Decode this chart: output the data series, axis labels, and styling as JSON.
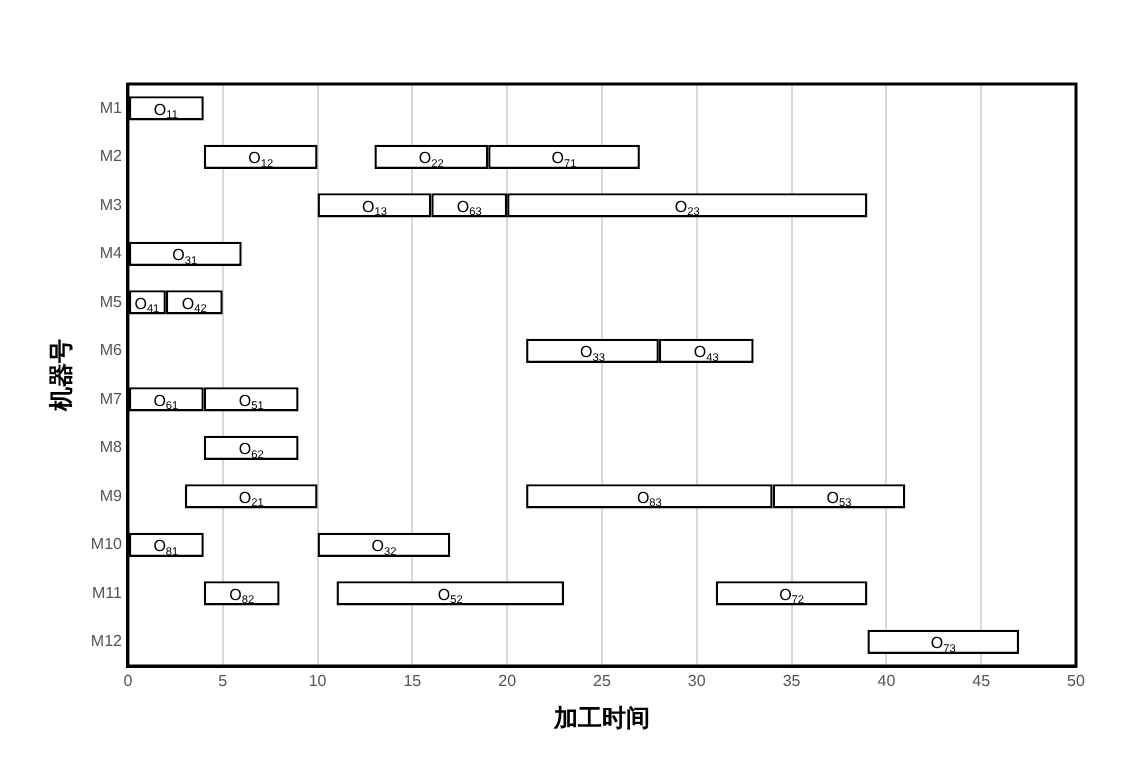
{
  "chart_data": {
    "type": "bar",
    "orientation": "horizontal",
    "xlabel": "加工时间",
    "ylabel": "机器号",
    "categories": [
      "M1",
      "M2",
      "M3",
      "M4",
      "M5",
      "M6",
      "M7",
      "M8",
      "M9",
      "M10",
      "M11",
      "M12"
    ],
    "series": [
      {
        "color": "#ffffff",
        "base": [
          0,
          4,
          10,
          0,
          0,
          21,
          0,
          4,
          3,
          0,
          4,
          39
        ],
        "values": [
          4,
          6,
          6,
          6,
          2,
          7,
          4,
          5,
          7,
          4,
          4,
          8
        ]
      },
      {
        "color": "#ffffff",
        "base": [
          null,
          13,
          16,
          null,
          2,
          28,
          4,
          null,
          21,
          10,
          11,
          null
        ],
        "values": [
          null,
          6,
          4,
          null,
          3,
          5,
          5,
          null,
          13,
          7,
          12,
          null
        ]
      },
      {
        "color": "#ffffff",
        "base": [
          null,
          19,
          20,
          null,
          null,
          null,
          null,
          null,
          34,
          null,
          31,
          null
        ],
        "values": [
          null,
          8,
          19,
          null,
          null,
          null,
          null,
          null,
          7,
          null,
          8,
          null
        ]
      }
    ],
    "annotations": [
      {
        "text": "O$_{11}$",
        "x": 2,
        "y": "M1"
      },
      {
        "text": "O$_{12}$",
        "x": 7,
        "y": "M2"
      },
      {
        "text": "O$_{22}$",
        "x": 16,
        "y": "M2"
      },
      {
        "text": "O$_{71}$",
        "x": 23,
        "y": "M2"
      },
      {
        "text": "O$_{13}$",
        "x": 13,
        "y": "M3"
      },
      {
        "text": "O$_{63}$",
        "x": 18,
        "y": "M3"
      },
      {
        "text": "O$_{23}$",
        "x": 29.5,
        "y": "M3"
      },
      {
        "text": "O$_{31}$",
        "x": 3,
        "y": "M4"
      },
      {
        "text": "O$_{41}$",
        "x": 1,
        "y": "M5"
      },
      {
        "text": "O$_{42}$",
        "x": 3.5,
        "y": "M5"
      },
      {
        "text": "O$_{33}$",
        "x": 24.5,
        "y": "M6"
      },
      {
        "text": "O$_{43}$",
        "x": 30.5,
        "y": "M6"
      },
      {
        "text": "O$_{61}$",
        "x": 2,
        "y": "M7"
      },
      {
        "text": "O$_{51}$",
        "x": 6.5,
        "y": "M7"
      },
      {
        "text": "O$_{62}$",
        "x": 6.5,
        "y": "M8"
      },
      {
        "text": "O$_{21}$",
        "x": 6.5,
        "y": "M9"
      },
      {
        "text": "O$_{83}$",
        "x": 27.5,
        "y": "M9"
      },
      {
        "text": "O$_{53}$",
        "x": 37.5,
        "y": "M9"
      },
      {
        "text": "O$_{81}$",
        "x": 2,
        "y": "M10"
      },
      {
        "text": "O$_{32}$",
        "x": 13.5,
        "y": "M10"
      },
      {
        "text": "O$_{82}$",
        "x": 6,
        "y": "M11"
      },
      {
        "text": "O$_{52}$",
        "x": 17,
        "y": "M11"
      },
      {
        "text": "O$_{72}$",
        "x": 35,
        "y": "M11"
      },
      {
        "text": "O$_{73}$",
        "x": 43,
        "y": "M12"
      }
    ],
    "xlim": [
      0,
      50
    ],
    "xticks": [
      0,
      5,
      10,
      15,
      20,
      25,
      30,
      35,
      40,
      45,
      50
    ],
    "grid": "x",
    "legend": false
  }
}
